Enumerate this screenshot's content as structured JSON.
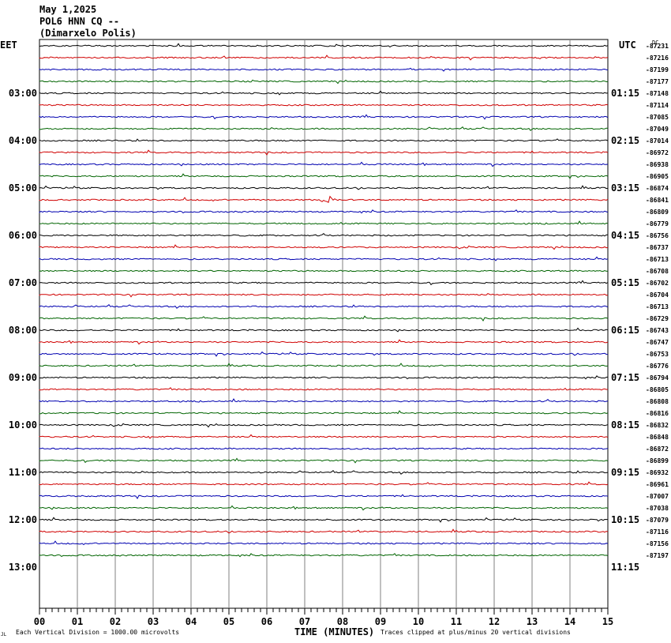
{
  "header": {
    "date": "May 1,2025",
    "station": "POL6 HNN CQ --",
    "location": "(Dimarxelo Polis)"
  },
  "left_timezone": "EET",
  "right_timezone": "UTC",
  "corner_label": "DC",
  "footer": {
    "scale_note": "Each Vertical Division = 1000.00 microvolts",
    "xlabel": "TIME (MINUTES)",
    "clip_note": "Traces clipped at plus/minus 20 vertical divisions",
    "mark": "JL"
  },
  "colors": {
    "black": "#000000",
    "red": "#d00000",
    "blue": "#0000b0",
    "green": "#006400",
    "grid": "#808080"
  },
  "chart_data": {
    "type": "line",
    "title": "May 1,2025 POL6 HNN CQ -- (Dimarxelo Polis)",
    "xlabel": "TIME (MINUTES)",
    "x_ticks": [
      "00",
      "01",
      "02",
      "03",
      "04",
      "05",
      "06",
      "07",
      "08",
      "09",
      "10",
      "11",
      "12",
      "13",
      "14",
      "15"
    ],
    "xlim": [
      0,
      15
    ],
    "grid": true,
    "trace_color_cycle": [
      "black",
      "red",
      "blue",
      "green"
    ],
    "left_hour_labels": [
      {
        "label": "03:00",
        "trace": 4
      },
      {
        "label": "04:00",
        "trace": 8
      },
      {
        "label": "05:00",
        "trace": 12
      },
      {
        "label": "06:00",
        "trace": 16
      },
      {
        "label": "07:00",
        "trace": 20
      },
      {
        "label": "08:00",
        "trace": 24
      },
      {
        "label": "09:00",
        "trace": 28
      },
      {
        "label": "10:00",
        "trace": 32
      },
      {
        "label": "11:00",
        "trace": 36
      },
      {
        "label": "12:00",
        "trace": 40
      },
      {
        "label": "13:00",
        "trace": 44
      }
    ],
    "right_hour_labels": [
      {
        "label": "01:15",
        "trace": 4
      },
      {
        "label": "02:15",
        "trace": 8
      },
      {
        "label": "03:15",
        "trace": 12
      },
      {
        "label": "04:15",
        "trace": 16
      },
      {
        "label": "05:15",
        "trace": 20
      },
      {
        "label": "06:15",
        "trace": 24
      },
      {
        "label": "07:15",
        "trace": 28
      },
      {
        "label": "08:15",
        "trace": 32
      },
      {
        "label": "09:15",
        "trace": 36
      },
      {
        "label": "10:15",
        "trace": 40
      },
      {
        "label": "11:15",
        "trace": 44
      }
    ],
    "trace_offsets": [
      "-87231",
      "-87216",
      "-87199",
      "-87177",
      "-87148",
      "-87114",
      "-87085",
      "-87049",
      "-87014",
      "-86972",
      "-86938",
      "-86905",
      "-86874",
      "-86841",
      "-86809",
      "-86779",
      "-86756",
      "-86737",
      "-86713",
      "-86708",
      "-86702",
      "-86704",
      "-86713",
      "-86729",
      "-86743",
      "-86747",
      "-86753",
      "-86776",
      "-86794",
      "-86805",
      "-86808",
      "-86816",
      "-86832",
      "-86848",
      "-86872",
      "-86899",
      "-86932",
      "-86961",
      "-87007",
      "-87038",
      "-87079",
      "-87116",
      "-87156",
      "-87197"
    ],
    "trace_count": 44,
    "rows_on_axis": 48
  }
}
